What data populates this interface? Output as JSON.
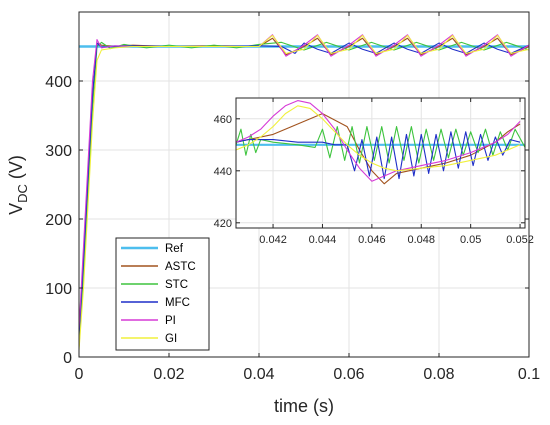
{
  "chart_data": {
    "type": "line",
    "xlabel": "time (s)",
    "ylabel_main": "V",
    "ylabel_sub": "DC",
    "ylabel_unit": " (V)",
    "xlim": [
      0,
      0.1
    ],
    "ylim": [
      0,
      500
    ],
    "xticks": [
      0,
      0.02,
      0.04,
      0.06,
      0.08,
      0.1
    ],
    "xtick_labels": [
      "0",
      "0.02",
      "0.04",
      "0.06",
      "0.08",
      "0.1"
    ],
    "yticks": [
      0,
      100,
      200,
      300,
      400
    ],
    "ytick_labels": [
      "0",
      "100",
      "200",
      "300",
      "400"
    ],
    "grid": true,
    "legend_position": "bottom-left",
    "colors": {
      "Ref": "#4dbeee",
      "ASTC": "#a2531e",
      "STC": "#3ec43e",
      "MFC": "#1f2ec8",
      "PI": "#d63ad6",
      "GI": "#f0f03c"
    },
    "series": [
      {
        "name": "Ref",
        "x": [
          0,
          0.1
        ],
        "y": [
          450,
          450
        ]
      },
      {
        "name": "ASTC",
        "x": [
          0,
          0.001,
          0.002,
          0.003,
          0.004,
          0.005,
          0.008,
          0.012,
          0.02,
          0.03,
          0.04,
          0.043,
          0.046,
          0.05,
          0.053,
          0.056,
          0.06,
          0.063,
          0.066,
          0.07,
          0.073,
          0.076,
          0.08,
          0.083,
          0.086,
          0.09,
          0.093,
          0.096,
          0.1
        ],
        "y": [
          20,
          130,
          250,
          370,
          455,
          452,
          450,
          452,
          450,
          451,
          450,
          462,
          438,
          450,
          462,
          438,
          450,
          462,
          438,
          450,
          462,
          438,
          450,
          462,
          438,
          450,
          462,
          438,
          450
        ]
      },
      {
        "name": "STC",
        "x": [
          0,
          0.001,
          0.002,
          0.003,
          0.004,
          0.005,
          0.007,
          0.01,
          0.015,
          0.02,
          0.025,
          0.03,
          0.035,
          0.04,
          0.045,
          0.05,
          0.055,
          0.06,
          0.065,
          0.07,
          0.075,
          0.08,
          0.085,
          0.09,
          0.095,
          0.1
        ],
        "y": [
          15,
          120,
          240,
          360,
          450,
          456,
          447,
          453,
          448,
          452,
          448,
          452,
          448,
          453,
          456,
          445,
          456,
          445,
          456,
          445,
          456,
          445,
          456,
          445,
          456,
          445
        ]
      },
      {
        "name": "MFC",
        "x": [
          0,
          0.001,
          0.002,
          0.003,
          0.004,
          0.005,
          0.01,
          0.02,
          0.03,
          0.04,
          0.045,
          0.048,
          0.05,
          0.053,
          0.056,
          0.06,
          0.063,
          0.066,
          0.07,
          0.073,
          0.076,
          0.08,
          0.083,
          0.086,
          0.09,
          0.093,
          0.096,
          0.1
        ],
        "y": [
          30,
          140,
          260,
          380,
          455,
          449,
          451,
          450,
          450,
          451,
          450,
          440,
          455,
          446,
          440,
          455,
          446,
          440,
          455,
          446,
          440,
          455,
          446,
          440,
          455,
          446,
          440,
          452
        ]
      },
      {
        "name": "PI",
        "x": [
          0,
          0.001,
          0.002,
          0.003,
          0.004,
          0.005,
          0.008,
          0.012,
          0.02,
          0.03,
          0.04,
          0.043,
          0.046,
          0.05,
          0.053,
          0.056,
          0.06,
          0.063,
          0.066,
          0.07,
          0.073,
          0.076,
          0.08,
          0.083,
          0.086,
          0.09,
          0.093,
          0.096,
          0.1
        ],
        "y": [
          40,
          160,
          280,
          400,
          460,
          448,
          451,
          450,
          450,
          450,
          450,
          467,
          436,
          452,
          467,
          436,
          452,
          467,
          436,
          452,
          467,
          436,
          452,
          467,
          436,
          452,
          467,
          436,
          452
        ]
      },
      {
        "name": "GI",
        "x": [
          0,
          0.001,
          0.002,
          0.003,
          0.004,
          0.005,
          0.008,
          0.012,
          0.02,
          0.03,
          0.04,
          0.043,
          0.046,
          0.05,
          0.053,
          0.056,
          0.06,
          0.063,
          0.066,
          0.07,
          0.073,
          0.076,
          0.08,
          0.083,
          0.086,
          0.09,
          0.093,
          0.096,
          0.1
        ],
        "y": [
          10,
          100,
          220,
          340,
          430,
          445,
          448,
          450,
          450,
          450,
          450,
          466,
          440,
          446,
          466,
          440,
          446,
          466,
          440,
          446,
          466,
          440,
          446,
          466,
          440,
          446,
          466,
          440,
          446
        ]
      }
    ],
    "inset": {
      "xlim": [
        0.0405,
        0.0522
      ],
      "ylim": [
        418,
        468
      ],
      "xticks": [
        0.042,
        0.044,
        0.046,
        0.048,
        0.05,
        0.052
      ],
      "xtick_labels": [
        "0.042",
        "0.044",
        "0.046",
        "0.048",
        "0.05",
        "0.052"
      ],
      "yticks": [
        420,
        440,
        460
      ],
      "ytick_labels": [
        "420",
        "440",
        "460"
      ],
      "grid": true,
      "series": [
        {
          "name": "Ref",
          "x": [
            0.0405,
            0.0522
          ],
          "y": [
            450,
            450
          ]
        },
        {
          "name": "ASTC",
          "x": [
            0.0405,
            0.041,
            0.042,
            0.043,
            0.044,
            0.045,
            0.0455,
            0.046,
            0.0465,
            0.047,
            0.048,
            0.049,
            0.05,
            0.051,
            0.0515,
            0.052
          ],
          "y": [
            451,
            452,
            454,
            458,
            462,
            457,
            448,
            440,
            435,
            439,
            441,
            443,
            446,
            451,
            455,
            458
          ]
        },
        {
          "name": "STC",
          "x": [
            0.0405,
            0.0407,
            0.0409,
            0.0411,
            0.0413,
            0.0415,
            0.042,
            0.043,
            0.0437,
            0.044,
            0.0443,
            0.0446,
            0.0449,
            0.0452,
            0.0455,
            0.0458,
            0.0461,
            0.0464,
            0.0467,
            0.047,
            0.0473,
            0.0476,
            0.0479,
            0.0482,
            0.0485,
            0.0488,
            0.0491,
            0.0494,
            0.0497,
            0.05,
            0.0503,
            0.0506,
            0.0509,
            0.0512,
            0.0515,
            0.0518,
            0.0522
          ],
          "y": [
            450,
            456,
            446,
            454,
            447,
            452,
            451,
            450,
            449,
            456,
            445,
            457,
            444,
            457,
            443,
            457,
            444,
            457,
            443,
            457,
            444,
            457,
            443,
            456,
            444,
            456,
            445,
            456,
            446,
            455,
            447,
            456,
            446,
            455,
            448,
            456,
            449
          ]
        },
        {
          "name": "MFC",
          "x": [
            0.0405,
            0.041,
            0.042,
            0.043,
            0.044,
            0.0445,
            0.045,
            0.0453,
            0.0456,
            0.0459,
            0.0462,
            0.0465,
            0.0468,
            0.0471,
            0.0474,
            0.0477,
            0.048,
            0.0483,
            0.0486,
            0.0489,
            0.0492,
            0.0495,
            0.0498,
            0.0501,
            0.0504,
            0.0507,
            0.051,
            0.0513,
            0.0516,
            0.052
          ],
          "y": [
            451,
            452,
            452,
            451,
            451,
            450,
            450,
            440,
            452,
            438,
            453,
            437,
            453,
            437,
            454,
            438,
            454,
            439,
            454,
            440,
            455,
            441,
            455,
            442,
            454,
            444,
            453,
            446,
            452,
            451
          ]
        },
        {
          "name": "PI",
          "x": [
            0.0405,
            0.041,
            0.0415,
            0.042,
            0.0425,
            0.043,
            0.0435,
            0.044,
            0.0445,
            0.045,
            0.0455,
            0.046,
            0.0465,
            0.047,
            0.048,
            0.049,
            0.05,
            0.051,
            0.0515,
            0.052
          ],
          "y": [
            451,
            453,
            456,
            461,
            465,
            467,
            466,
            462,
            456,
            448,
            441,
            436,
            438,
            440,
            442,
            444,
            447,
            451,
            454,
            459
          ]
        },
        {
          "name": "GI",
          "x": [
            0.0405,
            0.041,
            0.0415,
            0.042,
            0.0425,
            0.043,
            0.0435,
            0.044,
            0.0445,
            0.045,
            0.0455,
            0.046,
            0.0465,
            0.047,
            0.048,
            0.049,
            0.05,
            0.051,
            0.052
          ],
          "y": [
            448,
            450,
            453,
            457,
            462,
            465,
            464,
            460,
            455,
            450,
            446,
            443,
            441,
            440,
            441,
            442,
            444,
            446,
            450
          ]
        }
      ]
    }
  }
}
